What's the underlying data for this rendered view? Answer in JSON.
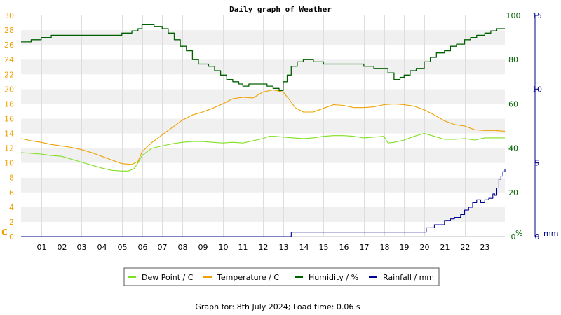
{
  "chart_data": {
    "type": "line",
    "title": "Daily graph of Weather",
    "footer": "Graph for: 8th July 2024; Load time: 0.06 s",
    "x_ticks": [
      "01",
      "02",
      "03",
      "04",
      "05",
      "06",
      "07",
      "08",
      "09",
      "10",
      "11",
      "12",
      "13",
      "14",
      "15",
      "16",
      "17",
      "18",
      "19",
      "20",
      "21",
      "22",
      "23"
    ],
    "x_range_hours": [
      0,
      24
    ],
    "axes": {
      "left": {
        "label": "C",
        "min": 0,
        "max": 30,
        "ticks": [
          "0",
          "2",
          "4",
          "6",
          "8",
          "10",
          "12",
          "14",
          "16",
          "18",
          "20",
          "22",
          "24",
          "26",
          "28",
          "30"
        ],
        "color": "#f0a000"
      },
      "right1": {
        "label": "%",
        "min": 0,
        "max": 100,
        "ticks": [
          "0",
          "20",
          "40",
          "60",
          "80",
          "100"
        ],
        "color": "#006000"
      },
      "right2": {
        "label": "mm",
        "min": 0,
        "max": 15,
        "ticks": [
          "0",
          "5",
          "10",
          "15"
        ],
        "color": "#000090"
      }
    },
    "grid": true,
    "legend_position": "bottom",
    "series": [
      {
        "name": "Dew Point / C",
        "axis": "left",
        "color": "#80e020",
        "step": false,
        "x": [
          0,
          0.5,
          1,
          1.5,
          2,
          2.5,
          3,
          3.5,
          4,
          4.5,
          5,
          5.3,
          5.6,
          5.8,
          6,
          6.5,
          7,
          7.5,
          8,
          8.5,
          9,
          9.5,
          10,
          10.5,
          11,
          11.5,
          12,
          12.3,
          12.6,
          13,
          13.5,
          14,
          14.5,
          15,
          15.5,
          16,
          16.5,
          17,
          17.5,
          18,
          18.2,
          18.5,
          19,
          19.5,
          20,
          20.5,
          21,
          21.5,
          22,
          22.5,
          23,
          23.5,
          24
        ],
        "y": [
          11.4,
          11.3,
          11.2,
          11.0,
          10.9,
          10.5,
          10.1,
          9.7,
          9.3,
          9.0,
          8.9,
          8.9,
          9.2,
          10.0,
          11.0,
          12.0,
          12.3,
          12.6,
          12.8,
          12.9,
          12.9,
          12.8,
          12.7,
          12.8,
          12.7,
          13.0,
          13.3,
          13.6,
          13.6,
          13.5,
          13.4,
          13.3,
          13.4,
          13.6,
          13.7,
          13.7,
          13.6,
          13.4,
          13.5,
          13.6,
          12.7,
          12.8,
          13.1,
          13.6,
          14.0,
          13.6,
          13.2,
          13.2,
          13.3,
          13.1,
          13.4,
          13.4,
          13.4
        ]
      },
      {
        "name": "Temperature / C",
        "axis": "left",
        "color": "#f0a000",
        "step": false,
        "x": [
          0,
          0.5,
          1,
          1.5,
          2,
          2.5,
          3,
          3.5,
          4,
          4.5,
          5,
          5.5,
          5.8,
          6,
          6.5,
          7,
          7.5,
          8,
          8.5,
          9,
          9.5,
          10,
          10.5,
          11,
          11.5,
          12,
          12.5,
          13,
          13.3,
          13.6,
          14,
          14.5,
          15,
          15.5,
          16,
          16.5,
          17,
          17.5,
          18,
          18.5,
          19,
          19.5,
          20,
          20.5,
          21,
          21.5,
          22,
          22.5,
          23,
          23.5,
          24
        ],
        "y": [
          13.3,
          13.0,
          12.8,
          12.5,
          12.3,
          12.1,
          11.8,
          11.4,
          10.9,
          10.4,
          9.9,
          9.8,
          10.2,
          11.5,
          12.8,
          13.8,
          14.8,
          15.8,
          16.5,
          16.9,
          17.4,
          18.0,
          18.7,
          18.9,
          18.8,
          19.6,
          19.9,
          19.6,
          18.6,
          17.5,
          16.9,
          16.9,
          17.4,
          17.9,
          17.8,
          17.5,
          17.5,
          17.6,
          17.9,
          18.0,
          17.9,
          17.7,
          17.2,
          16.5,
          15.7,
          15.2,
          15.0,
          14.5,
          14.4,
          14.4,
          14.3
        ]
      },
      {
        "name": "Humidity / %",
        "axis": "right1",
        "color": "#006000",
        "step": true,
        "x": [
          0,
          0.5,
          1,
          1.5,
          2,
          2.5,
          3,
          3.5,
          4,
          4.5,
          5,
          5.5,
          5.8,
          6,
          6.3,
          6.6,
          7,
          7.3,
          7.6,
          7.9,
          8.2,
          8.5,
          8.8,
          9,
          9.3,
          9.6,
          9.9,
          10.2,
          10.5,
          10.8,
          11,
          11.3,
          11.6,
          11.9,
          12.2,
          12.5,
          12.8,
          13,
          13.2,
          13.4,
          13.7,
          14,
          14.5,
          15,
          15.5,
          16,
          16.5,
          17,
          17.5,
          18,
          18.2,
          18.5,
          18.8,
          19,
          19.3,
          19.6,
          20,
          20.3,
          20.6,
          21,
          21.3,
          21.6,
          22,
          22.3,
          22.6,
          23,
          23.3,
          23.6,
          24
        ],
        "y": [
          88,
          89,
          90,
          91,
          91,
          91,
          91,
          91,
          91,
          91,
          92,
          93,
          94,
          96,
          96,
          95,
          94,
          92,
          89,
          86,
          84,
          80,
          78,
          78,
          77,
          75,
          73,
          71,
          70,
          69,
          68,
          69,
          69,
          69,
          68,
          67,
          66,
          70,
          73,
          77,
          79,
          80,
          79,
          78,
          78,
          78,
          78,
          77,
          76,
          76,
          74,
          71,
          72,
          73,
          75,
          76,
          79,
          81,
          83,
          84,
          86,
          87,
          89,
          90,
          91,
          92,
          93,
          94,
          94
        ]
      },
      {
        "name": "Rainfall / mm",
        "axis": "right2",
        "color": "#000090",
        "step": true,
        "x": [
          0,
          13.3,
          13.4,
          19.9,
          20.1,
          20.5,
          21,
          21.3,
          21.5,
          21.8,
          22,
          22.2,
          22.4,
          22.6,
          22.8,
          23,
          23.2,
          23.4,
          23.5,
          23.6,
          23.7,
          23.8,
          23.9,
          24
        ],
        "y": [
          0,
          0,
          0.3,
          0.3,
          0.6,
          0.8,
          1.1,
          1.2,
          1.3,
          1.5,
          1.8,
          2.0,
          2.3,
          2.5,
          2.3,
          2.5,
          2.6,
          2.9,
          2.8,
          3.3,
          3.9,
          4.1,
          4.4,
          4.6
        ]
      }
    ]
  }
}
